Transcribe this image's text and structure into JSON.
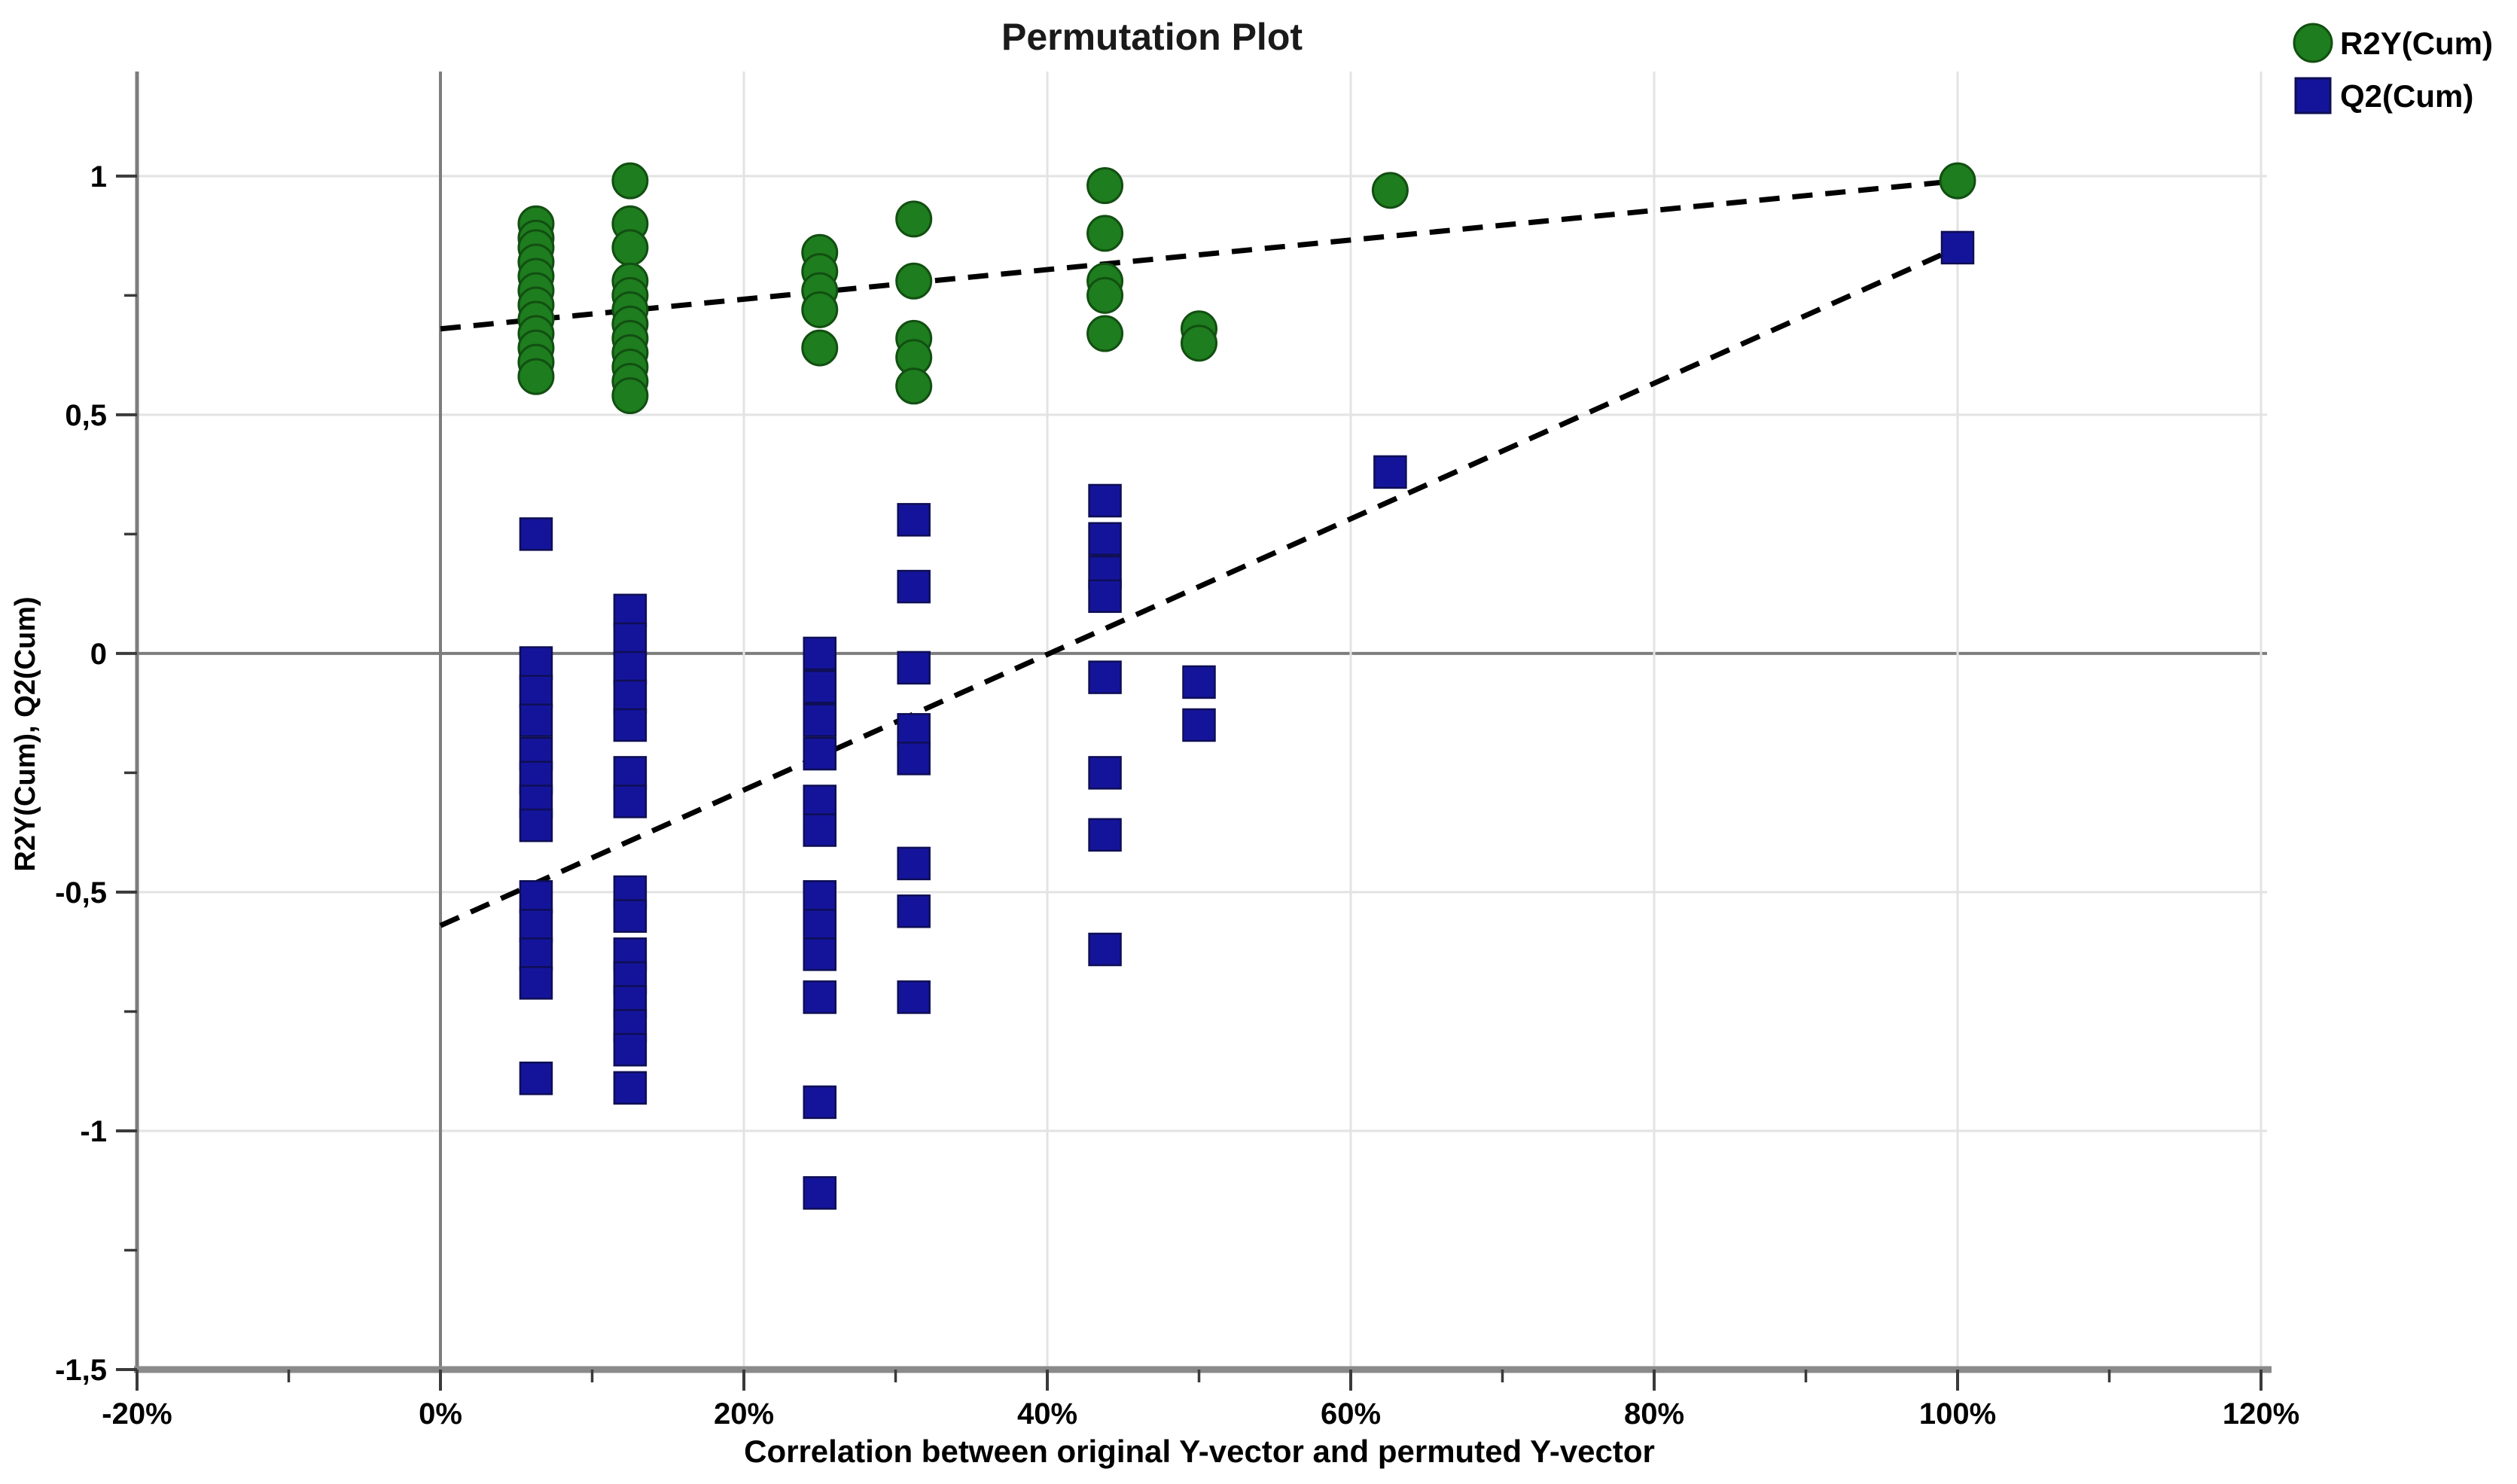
{
  "title": "Permutation Plot",
  "legend": {
    "position": "top-right",
    "items": [
      {
        "label": "R2Y(Cum)",
        "marker": "circle-icon",
        "color": "#1e7d1e"
      },
      {
        "label": "Q2(Cum)",
        "marker": "square-icon",
        "color": "#14149b"
      }
    ]
  },
  "axes": {
    "x": {
      "label": "Correlation between original Y-vector and permuted Y-vector",
      "tick_labels": [
        "-20%",
        "0%",
        "20%",
        "40%",
        "60%",
        "80%",
        "100%",
        "120%"
      ],
      "tick_values": [
        -20,
        0,
        20,
        40,
        60,
        80,
        100,
        120
      ],
      "minor_step": 10,
      "range": [
        -20,
        120
      ]
    },
    "y": {
      "label": "R2Y(Cum), Q2(Cum)",
      "tick_labels": [
        "1",
        "0,5",
        "0",
        "-0,5",
        "-1",
        "-1,5"
      ],
      "tick_values": [
        1,
        0.5,
        0,
        -0.5,
        -1,
        -1.5
      ],
      "minor_step": 0.25,
      "range": [
        -1.5,
        1.2
      ]
    }
  },
  "colors": {
    "r2y_fill": "#1e7d1e",
    "r2y_stroke": "#124f12",
    "q2_fill": "#14149b",
    "q2_stroke": "#0e0e55",
    "grid_light": "#e3e3e3",
    "grid_dark": "#7d7d7d",
    "tick": "#3a3a3a",
    "dashed_line": "#000000",
    "background": "#ffffff"
  },
  "chart_data": {
    "type": "scatter",
    "title": "Permutation Plot",
    "xlabel": "Correlation between original Y-vector and permuted Y-vector",
    "ylabel": "R2Y(Cum), Q2(Cum)",
    "xlim": [
      -20,
      120
    ],
    "ylim": [
      -1.5,
      1.2
    ],
    "x_unit": "percent",
    "grid": true,
    "legend_position": "top-right",
    "series": [
      {
        "name": "R2Y(Cum)",
        "marker": "circle",
        "color": "#1e7d1e",
        "points": [
          [
            6.3,
            0.9
          ],
          [
            6.3,
            0.87
          ],
          [
            6.3,
            0.85
          ],
          [
            6.3,
            0.82
          ],
          [
            6.3,
            0.79
          ],
          [
            6.3,
            0.76
          ],
          [
            6.3,
            0.73
          ],
          [
            6.3,
            0.7
          ],
          [
            6.3,
            0.67
          ],
          [
            6.3,
            0.64
          ],
          [
            6.3,
            0.61
          ],
          [
            6.3,
            0.58
          ],
          [
            12.5,
            0.99
          ],
          [
            12.5,
            0.9
          ],
          [
            12.5,
            0.85
          ],
          [
            12.5,
            0.78
          ],
          [
            12.5,
            0.75
          ],
          [
            12.5,
            0.72
          ],
          [
            12.5,
            0.69
          ],
          [
            12.5,
            0.66
          ],
          [
            12.5,
            0.63
          ],
          [
            12.5,
            0.6
          ],
          [
            12.5,
            0.57
          ],
          [
            12.5,
            0.54
          ],
          [
            25,
            0.84
          ],
          [
            25,
            0.8
          ],
          [
            25,
            0.76
          ],
          [
            25,
            0.72
          ],
          [
            25,
            0.64
          ],
          [
            31.2,
            0.91
          ],
          [
            31.2,
            0.78
          ],
          [
            31.2,
            0.66
          ],
          [
            31.2,
            0.62
          ],
          [
            31.2,
            0.56
          ],
          [
            43.8,
            0.98
          ],
          [
            43.8,
            0.88
          ],
          [
            43.8,
            0.78
          ],
          [
            43.8,
            0.75
          ],
          [
            43.8,
            0.67
          ],
          [
            50,
            0.68
          ],
          [
            50,
            0.65
          ],
          [
            62.6,
            0.97
          ],
          [
            100,
            0.99
          ]
        ]
      },
      {
        "name": "Q2(Cum)",
        "marker": "square",
        "color": "#14149b",
        "points": [
          [
            6.3,
            0.25
          ],
          [
            6.3,
            -0.02
          ],
          [
            6.3,
            -0.08
          ],
          [
            6.3,
            -0.14
          ],
          [
            6.3,
            -0.21
          ],
          [
            6.3,
            -0.26
          ],
          [
            6.3,
            -0.31
          ],
          [
            6.3,
            -0.36
          ],
          [
            6.3,
            -0.51
          ],
          [
            6.3,
            -0.57
          ],
          [
            6.3,
            -0.63
          ],
          [
            6.3,
            -0.69
          ],
          [
            6.3,
            -0.89
          ],
          [
            12.5,
            0.09
          ],
          [
            12.5,
            0.03
          ],
          [
            12.5,
            -0.03
          ],
          [
            12.5,
            -0.09
          ],
          [
            12.5,
            -0.15
          ],
          [
            12.5,
            -0.25
          ],
          [
            12.5,
            -0.31
          ],
          [
            12.5,
            -0.5
          ],
          [
            12.5,
            -0.55
          ],
          [
            12.5,
            -0.63
          ],
          [
            12.5,
            -0.68
          ],
          [
            12.5,
            -0.73
          ],
          [
            12.5,
            -0.78
          ],
          [
            12.5,
            -0.83
          ],
          [
            12.5,
            -0.91
          ],
          [
            25,
            0.0
          ],
          [
            25,
            -0.07
          ],
          [
            25,
            -0.14
          ],
          [
            25,
            -0.21
          ],
          [
            25,
            -0.31
          ],
          [
            25,
            -0.37
          ],
          [
            25,
            -0.51
          ],
          [
            25,
            -0.57
          ],
          [
            25,
            -0.63
          ],
          [
            25,
            -0.72
          ],
          [
            25,
            -0.94
          ],
          [
            25,
            -1.13
          ],
          [
            31.2,
            0.28
          ],
          [
            31.2,
            0.14
          ],
          [
            31.2,
            -0.03
          ],
          [
            31.2,
            -0.16
          ],
          [
            31.2,
            -0.22
          ],
          [
            31.2,
            -0.44
          ],
          [
            31.2,
            -0.54
          ],
          [
            31.2,
            -0.72
          ],
          [
            43.8,
            0.32
          ],
          [
            43.8,
            0.24
          ],
          [
            43.8,
            0.17
          ],
          [
            43.8,
            0.12
          ],
          [
            43.8,
            -0.05
          ],
          [
            43.8,
            -0.25
          ],
          [
            43.8,
            -0.38
          ],
          [
            43.8,
            -0.62
          ],
          [
            50,
            -0.06
          ],
          [
            50,
            -0.15
          ],
          [
            62.6,
            0.38
          ],
          [
            100,
            0.85
          ]
        ]
      }
    ],
    "regression_lines": [
      {
        "series": "R2Y(Cum)",
        "from": [
          0,
          0.68
        ],
        "to": [
          100,
          0.99
        ],
        "style": "dashed",
        "color": "#000000"
      },
      {
        "series": "Q2(Cum)",
        "from": [
          0,
          -0.57
        ],
        "to": [
          100,
          0.85
        ],
        "style": "dashed",
        "color": "#000000"
      }
    ]
  }
}
